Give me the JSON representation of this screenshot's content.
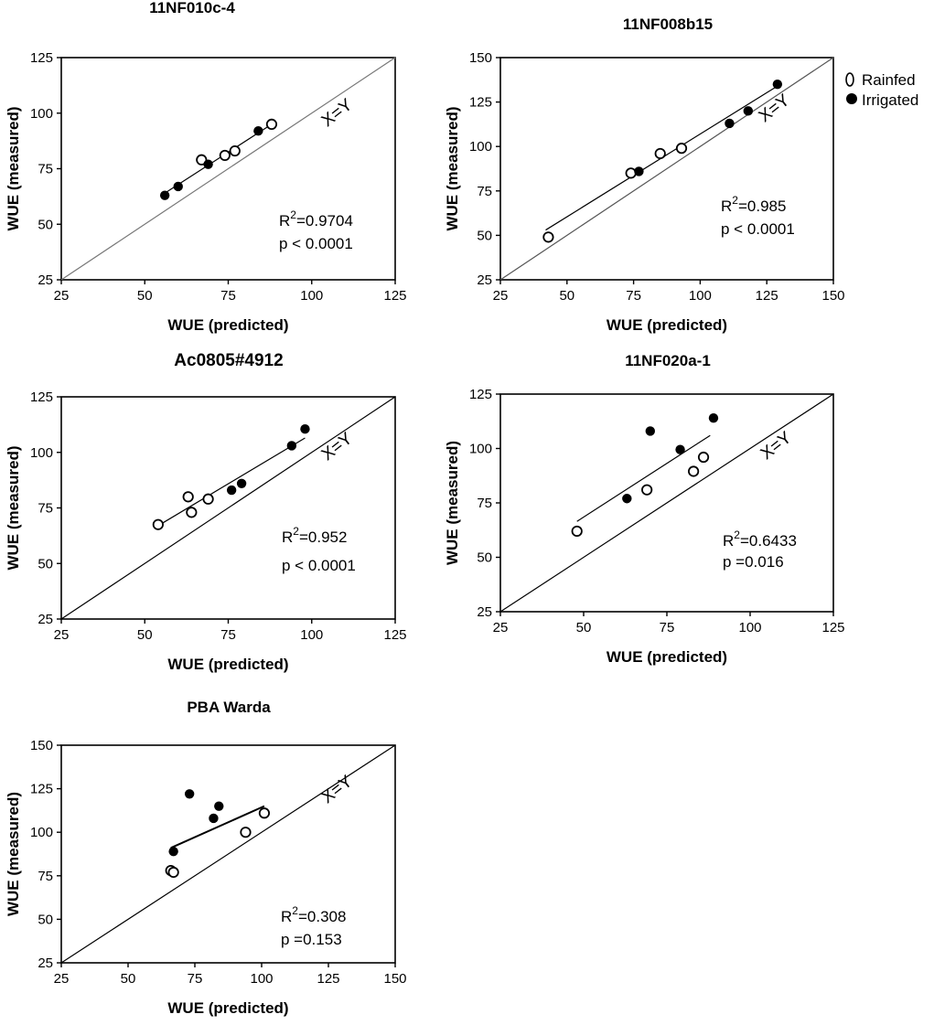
{
  "legend": {
    "rainfed": "Rainfed",
    "irrigated": "Irrigated"
  },
  "chart_data": [
    {
      "type": "scatter",
      "title": "11NF010c-4",
      "xlabel": "WUE (predicted)",
      "ylabel": "WUE (measured)",
      "xlim": [
        25,
        125
      ],
      "ylim": [
        25,
        125
      ],
      "xticks": [
        "25",
        "50",
        "75",
        "100",
        "125"
      ],
      "yticks": [
        "25",
        "50",
        "75",
        "100",
        "125"
      ],
      "r2_label": "R",
      "r2_sup": "2",
      "r2_value": "=0.9704",
      "p_text": "p < 0.0001",
      "identity_label": "X=Y",
      "series": [
        {
          "name": "Rainfed",
          "points": [
            [
              67,
              79
            ],
            [
              74,
              81
            ],
            [
              77,
              83
            ],
            [
              88,
              95
            ]
          ]
        },
        {
          "name": "Irrigated",
          "points": [
            [
              56,
              63
            ],
            [
              60,
              67
            ],
            [
              69,
              77
            ],
            [
              84,
              92
            ]
          ]
        }
      ],
      "fit_lines": [
        [
          [
            56,
            64
          ],
          [
            88,
            95
          ]
        ]
      ]
    },
    {
      "type": "scatter",
      "title": "11NF008b15",
      "xlabel": "WUE (predicted)",
      "ylabel": "WUE (measured)",
      "xlim": [
        25,
        150
      ],
      "ylim": [
        25,
        150
      ],
      "xticks": [
        "25",
        "50",
        "75",
        "100",
        "125",
        "150"
      ],
      "yticks": [
        "25",
        "50",
        "75",
        "100",
        "125",
        "150"
      ],
      "r2_label": "R",
      "r2_sup": "2",
      "r2_value": "=0.985",
      "p_text": "p < 0.0001",
      "identity_label": "X=Y",
      "series": [
        {
          "name": "Rainfed",
          "points": [
            [
              43,
              49
            ],
            [
              74,
              85
            ],
            [
              85,
              96
            ],
            [
              93,
              99
            ]
          ]
        },
        {
          "name": "Irrigated",
          "points": [
            [
              77,
              86
            ],
            [
              111,
              113
            ],
            [
              118,
              120
            ],
            [
              129,
              135
            ]
          ]
        }
      ],
      "fit_lines": [
        [
          [
            42,
            53
          ],
          [
            129,
            134
          ]
        ]
      ]
    },
    {
      "type": "scatter",
      "title": "Ac0805#4912",
      "xlabel": "WUE (predicted)",
      "ylabel": "WUE (measured)",
      "xlim": [
        25,
        125
      ],
      "ylim": [
        25,
        125
      ],
      "xticks": [
        "25",
        "50",
        "75",
        "100",
        "125"
      ],
      "yticks": [
        "25",
        "50",
        "75",
        "100",
        "125"
      ],
      "r2_label": "R",
      "r2_sup": "2",
      "r2_value": "=0.952",
      "p_text": "p < 0.0001",
      "identity_label": "X=Y",
      "series": [
        {
          "name": "Rainfed",
          "points": [
            [
              54,
              67.5
            ],
            [
              63,
              80
            ],
            [
              64,
              73
            ],
            [
              69,
              79
            ]
          ]
        },
        {
          "name": "Irrigated",
          "points": [
            [
              76,
              83
            ],
            [
              79,
              86
            ],
            [
              94,
              103
            ],
            [
              98,
              110.5
            ]
          ]
        }
      ],
      "fit_lines": [
        [
          [
            54,
            67
          ],
          [
            98,
            106.5
          ]
        ]
      ]
    },
    {
      "type": "scatter",
      "title": "11NF020a-1",
      "xlabel": "WUE (predicted)",
      "ylabel": "WUE (measured)",
      "xlim": [
        25,
        125
      ],
      "ylim": [
        25,
        125
      ],
      "xticks": [
        "25",
        "50",
        "75",
        "100",
        "125"
      ],
      "yticks": [
        "25",
        "50",
        "75",
        "100",
        "125"
      ],
      "r2_label": "R",
      "r2_sup": "2",
      "r2_value": "=0.6433",
      "p_text": "p =0.016",
      "identity_label": "X=Y",
      "series": [
        {
          "name": "Rainfed",
          "points": [
            [
              48,
              62
            ],
            [
              69,
              81
            ],
            [
              83,
              89.5
            ],
            [
              86,
              96
            ]
          ]
        },
        {
          "name": "Irrigated",
          "points": [
            [
              63,
              77
            ],
            [
              70,
              108
            ],
            [
              79,
              99.5
            ],
            [
              89,
              114
            ]
          ]
        }
      ],
      "fit_lines": [
        [
          [
            48,
            66.5
          ],
          [
            88,
            106
          ]
        ]
      ]
    },
    {
      "type": "scatter",
      "title": "PBA Warda",
      "xlabel": "WUE (predicted)",
      "ylabel": "WUE (measured)",
      "xlim": [
        25,
        150
      ],
      "ylim": [
        25,
        150
      ],
      "xticks": [
        "25",
        "50",
        "75",
        "100",
        "125",
        "150"
      ],
      "yticks": [
        "25",
        "50",
        "75",
        "100",
        "125",
        "150"
      ],
      "r2_label": "R",
      "r2_sup": "2",
      "r2_value": "=0.308",
      "p_text": "p =0.153",
      "identity_label": "X=Y",
      "series": [
        {
          "name": "Rainfed",
          "points": [
            [
              66,
              78
            ],
            [
              67,
              77
            ],
            [
              94,
              100
            ],
            [
              101,
              111
            ]
          ]
        },
        {
          "name": "Irrigated",
          "points": [
            [
              67,
              89
            ],
            [
              73,
              122
            ],
            [
              82,
              108
            ],
            [
              84,
              115
            ]
          ]
        }
      ],
      "fit_lines": [
        [
          [
            66,
            91
          ],
          [
            101,
            115
          ]
        ]
      ]
    }
  ]
}
